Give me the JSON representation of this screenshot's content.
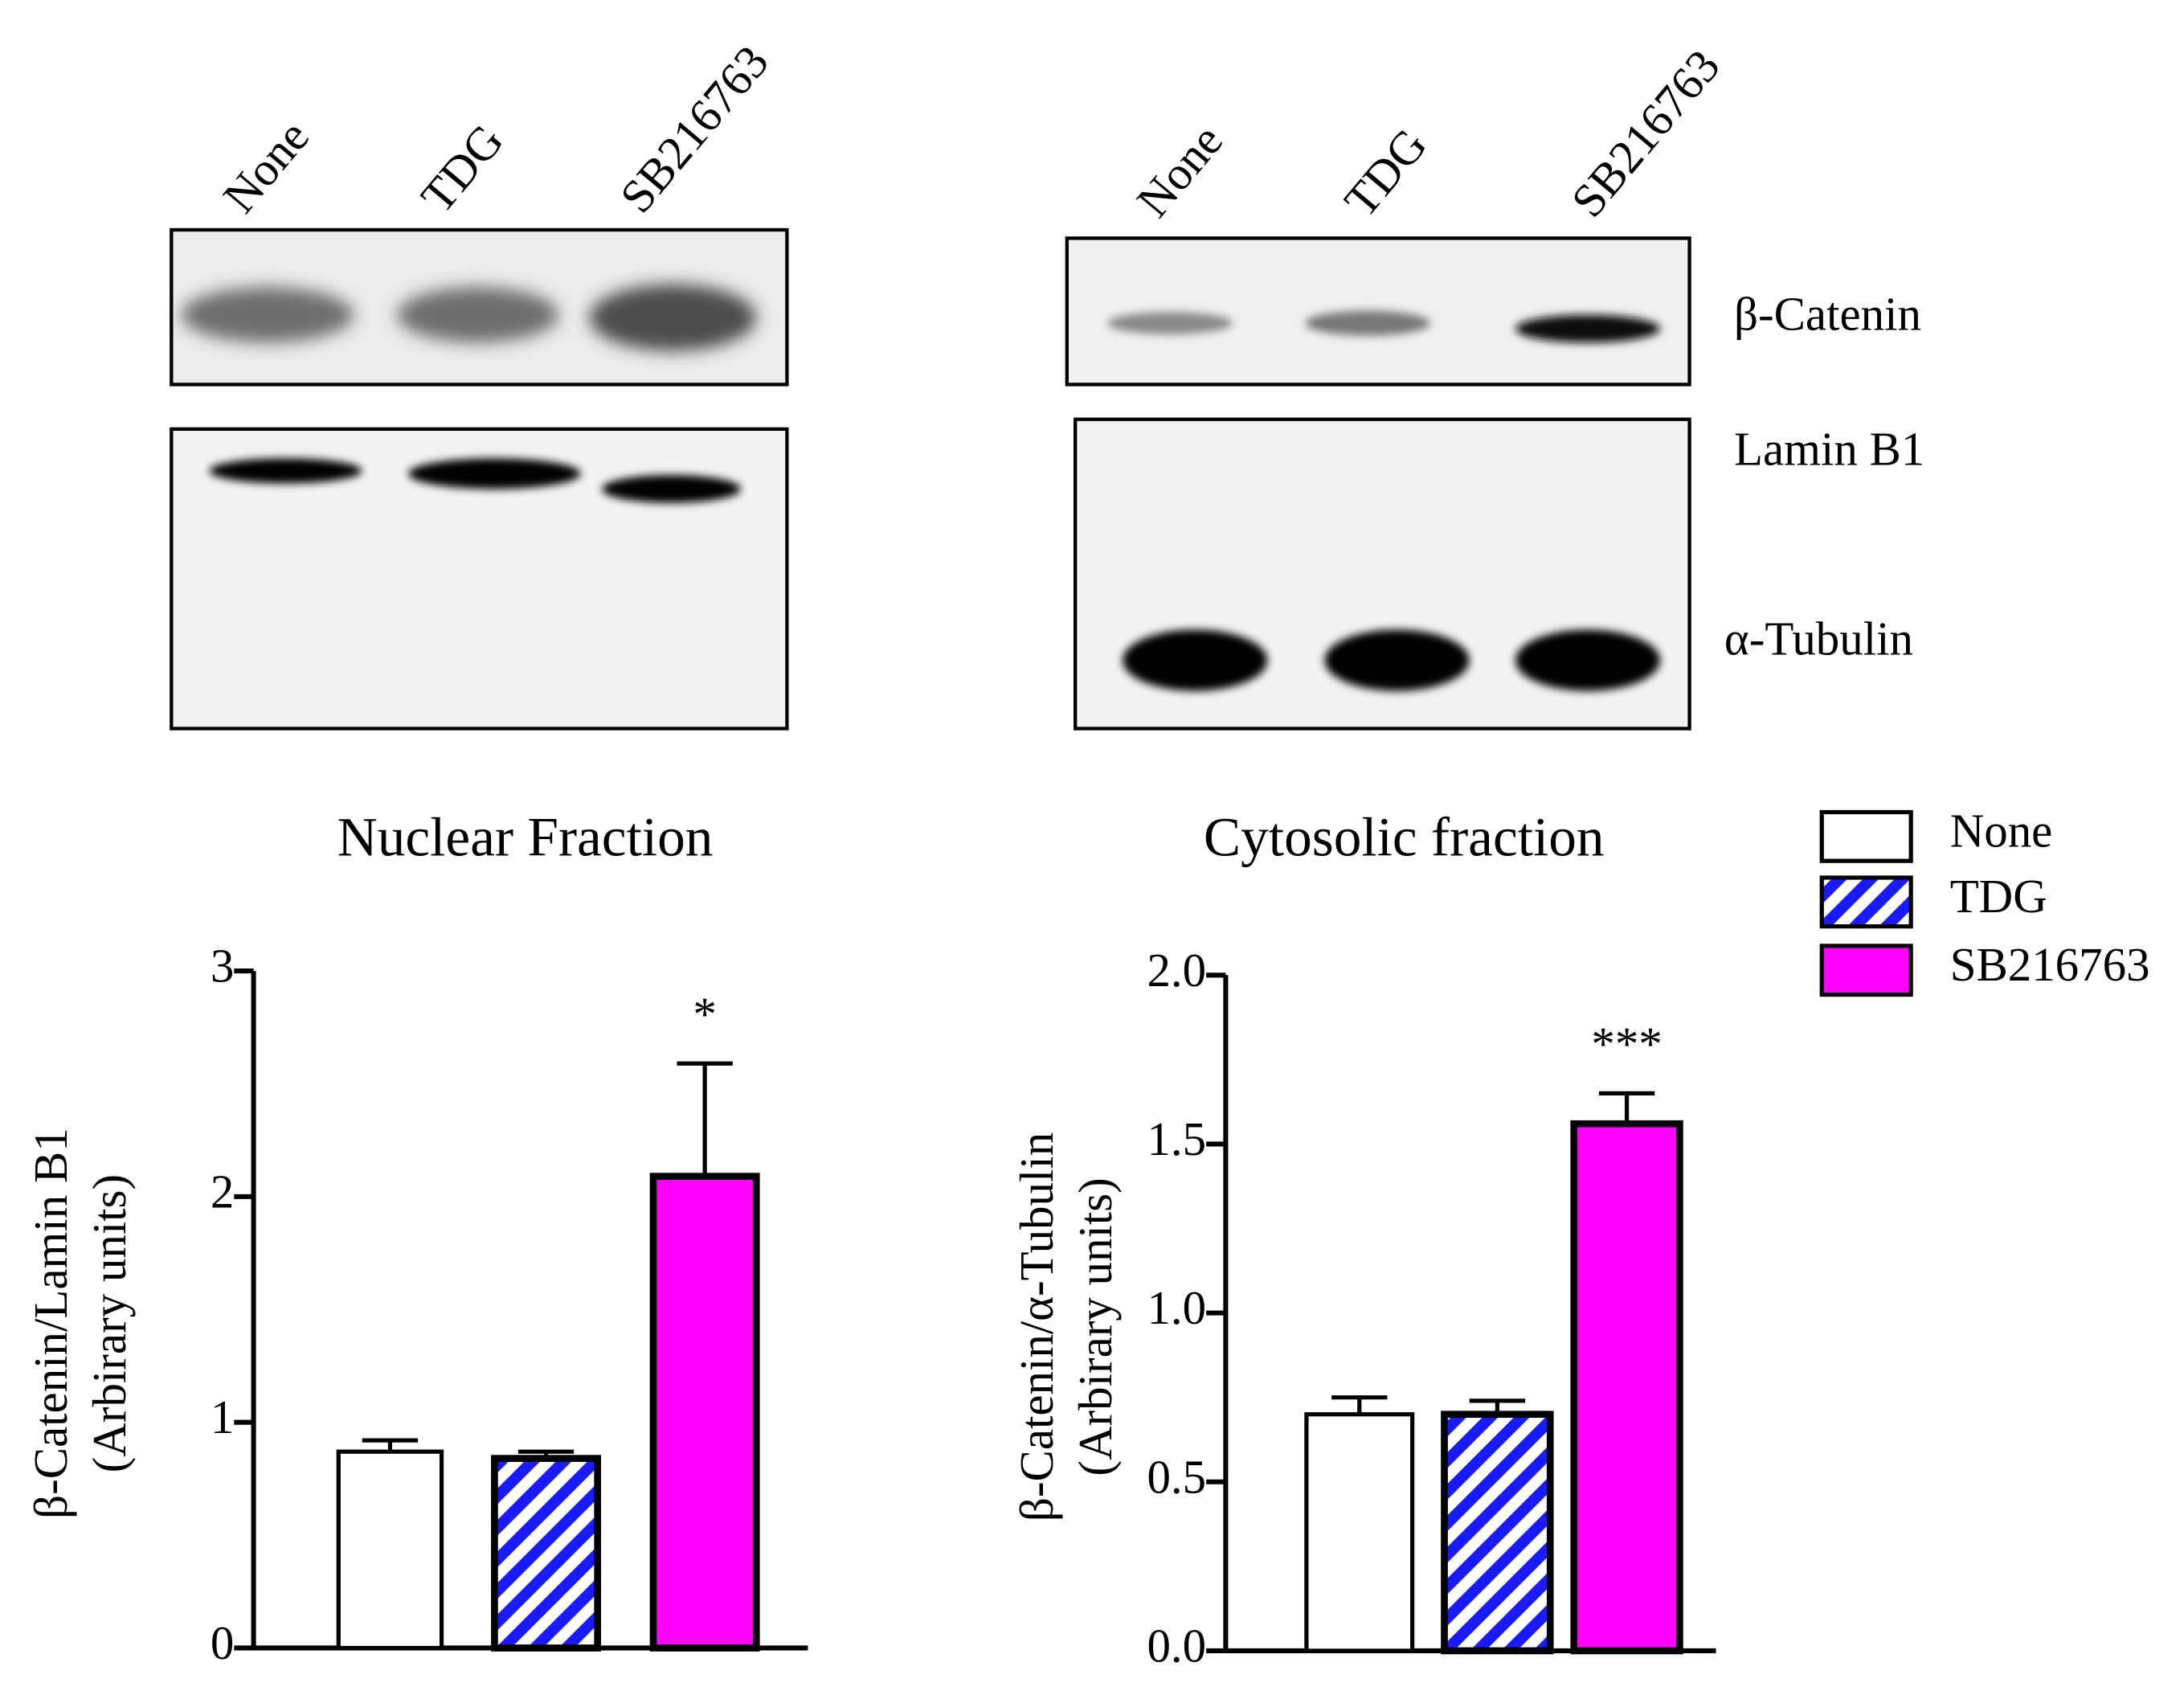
{
  "blots": {
    "nuclear_lanes": [
      "None",
      "TDG",
      "SB216763"
    ],
    "cytosolic_lanes": [
      "None",
      "TDG",
      "SB216763"
    ],
    "proteins": [
      "β-Catenin",
      "Lamin B1",
      "α-Tubulin"
    ]
  },
  "legend": [
    {
      "name": "None",
      "color": "#ffffff"
    },
    {
      "name": "TDG",
      "color": "#1a1aff",
      "pattern": "stripes"
    },
    {
      "name": "SB216763",
      "color": "#ff00ff"
    }
  ],
  "chart_data": [
    {
      "type": "bar",
      "title": "Nuclear Fraction",
      "ylabel": [
        "β-Catenin/Lamin B1",
        "(Arbirary units)"
      ],
      "values": [
        0.87,
        0.84,
        2.09
      ],
      "errors": [
        0.05,
        0.03,
        0.5
      ],
      "significance": [
        null,
        null,
        "*"
      ],
      "ylim": [
        0,
        3
      ],
      "yticks": [
        0,
        1,
        2,
        3
      ]
    },
    {
      "type": "bar",
      "title": "Cytosolic fraction",
      "ylabel": [
        "β-Catenin/α-Tubulin",
        "(Arbirary units)"
      ],
      "values": [
        0.7,
        0.7,
        1.56
      ],
      "errors": [
        0.05,
        0.04,
        0.09
      ],
      "significance": [
        null,
        null,
        "***"
      ],
      "ylim": [
        0,
        2
      ],
      "yticks": [
        {
          "value": 0,
          "label": "0.0"
        },
        0.5,
        {
          "value": 1,
          "label": "1.0"
        },
        1.5,
        {
          "value": 2,
          "label": "2.0"
        }
      ]
    }
  ]
}
